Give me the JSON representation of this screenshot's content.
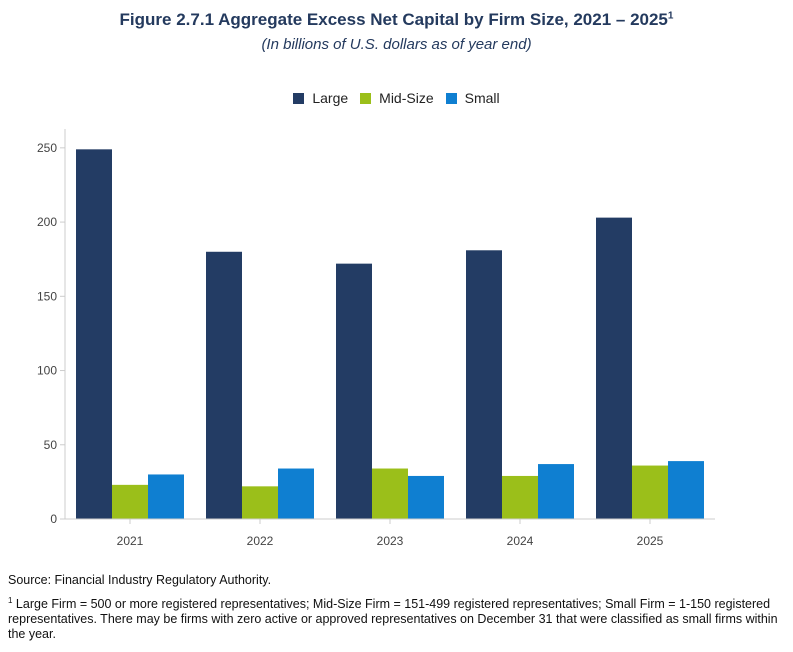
{
  "header": {
    "title": "Figure 2.7.1 Aggregate Excess Net Capital by Firm Size, 2021 – 2025",
    "title_sup": "1",
    "subtitle": "(In billions of U.S. dollars as of year end)"
  },
  "chart_data": {
    "type": "bar",
    "categories": [
      "2021",
      "2022",
      "2023",
      "2024",
      "2025"
    ],
    "series": [
      {
        "name": "Large",
        "color": "#233c64",
        "values": [
          249,
          180,
          172,
          181,
          203
        ]
      },
      {
        "name": "Mid-Size",
        "color": "#9bbf1a",
        "values": [
          23,
          22,
          34,
          29,
          36
        ]
      },
      {
        "name": "Small",
        "color": "#0f7fd1",
        "values": [
          30,
          34,
          29,
          37,
          39
        ]
      }
    ],
    "ylim": [
      0,
      260
    ],
    "yticks": [
      "0",
      "50",
      "100",
      "150",
      "200",
      "250"
    ],
    "ytick_values": [
      0,
      50,
      100,
      150,
      200,
      250
    ],
    "legend_position": "top-center",
    "grid": false
  },
  "footer": {
    "source": "Source: Financial Industry Regulatory Authority.",
    "note_marker": "1",
    "note": " Large Firm = 500 or more registered representatives; Mid-Size Firm = 151-499 registered representatives; Small Firm = 1-150 registered representatives. There may be firms with zero active or approved representatives on December 31 that were classified as small firms within the year."
  }
}
